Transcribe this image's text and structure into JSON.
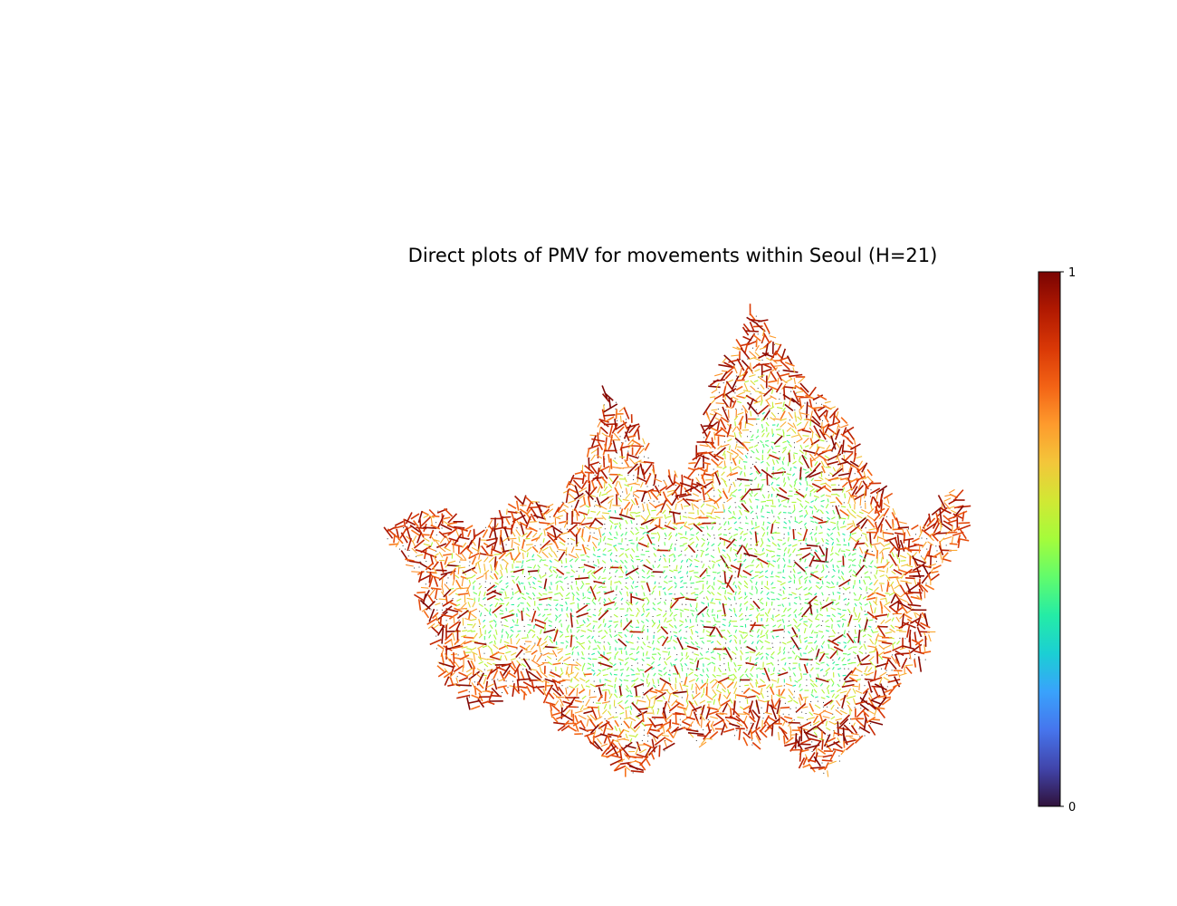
{
  "chart_data": {
    "type": "scatter",
    "plot_kind": "vector-field (quiver) of PMV directions over Seoul grid",
    "title": "Direct plots of PMV for movements within Seoul (H=21)",
    "axes_visible": false,
    "grid": false,
    "legend": "none",
    "colorbar": {
      "position": "right",
      "colormap": "turbo",
      "range": [
        0,
        1
      ],
      "tick_labels": [
        "0",
        "1"
      ],
      "colors": [
        "#30123b",
        "#4145ab",
        "#4675ed",
        "#39a2fc",
        "#1bcfd4",
        "#24eca6",
        "#61fc6c",
        "#a4fc3b",
        "#d1e834",
        "#f3c63a",
        "#fe9b2d",
        "#f36315",
        "#d93806",
        "#b11901",
        "#7a0403"
      ]
    },
    "region_outline": {
      "description": "approximate boundary of Seoul in data coordinates (0-100 x, 0-100 y)",
      "x": [
        0,
        4,
        10,
        16,
        20,
        24,
        28,
        30,
        31,
        34,
        36,
        38,
        38,
        40,
        43,
        45,
        47,
        50,
        52,
        54,
        56,
        58,
        60,
        62,
        63,
        66,
        68,
        70,
        72,
        74,
        76,
        78,
        80,
        82,
        84,
        86,
        88,
        90,
        92,
        94,
        96,
        98,
        100,
        100,
        96,
        94,
        92,
        94,
        93,
        90,
        88,
        86,
        84,
        80,
        76,
        72,
        70,
        68,
        66,
        64,
        61,
        58,
        55,
        53,
        51,
        49,
        47,
        45,
        42,
        40,
        35,
        30,
        28,
        26,
        24,
        22,
        20,
        16,
        12,
        10,
        9,
        8,
        6,
        7,
        4,
        2,
        0
      ],
      "y": [
        50,
        54,
        56,
        51,
        54,
        58,
        57,
        55,
        60,
        64,
        70,
        78,
        80,
        78,
        74,
        70,
        62,
        64,
        62,
        69,
        79,
        86,
        88,
        92,
        98,
        94,
        90,
        86,
        82,
        80,
        78,
        76,
        72,
        66,
        62,
        60,
        54,
        52,
        52,
        54,
        58,
        60,
        56,
        50,
        44,
        40,
        36,
        30,
        24,
        22,
        18,
        14,
        10,
        6,
        0,
        2,
        6,
        8,
        10,
        6,
        8,
        10,
        6,
        8,
        10,
        6,
        4,
        2,
        0,
        2,
        8,
        10,
        16,
        18,
        16,
        18,
        16,
        14,
        18,
        22,
        28,
        32,
        36,
        40,
        44,
        48,
        50
      ]
    },
    "value_pattern": {
      "interior": "low-mid values (0.35-0.6, cyan/green), short segments",
      "periphery": "high values (0.8-1.0, orange/dark red), long segments"
    },
    "xlabel": "",
    "ylabel": ""
  }
}
